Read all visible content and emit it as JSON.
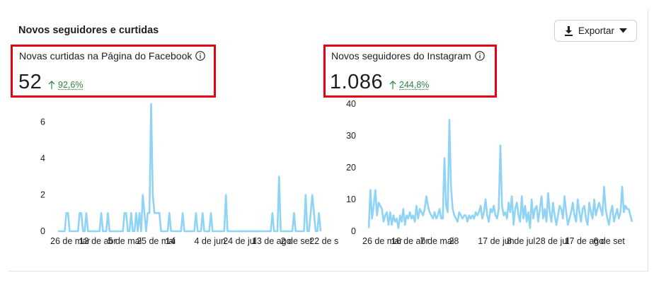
{
  "section": {
    "title": "Novos seguidores e curtidas",
    "export_label": "Exportar"
  },
  "icons": {
    "export": "download-icon",
    "dropdown": "caret-down-icon",
    "info": "info-icon",
    "trend": "arrow-up-icon"
  },
  "colors": {
    "series": "#8fd4f5",
    "positive": "#2e8540",
    "highlight": "#e60012"
  },
  "facebook": {
    "title": "Novas curtidas na Página do Facebook",
    "value": "52",
    "change": "92,6%"
  },
  "instagram": {
    "title": "Novos seguidores do Instagram",
    "value": "1.086",
    "change": "244,8%"
  },
  "chart_data": [
    {
      "type": "line",
      "title": "",
      "xlabel": "",
      "ylabel": "",
      "ylim": [
        0,
        7
      ],
      "yticks": [
        0,
        2,
        4,
        6
      ],
      "grid": false,
      "xtick_labels": [
        "26 de mar",
        "13 de abr",
        "5 de mai",
        "25 de mai",
        "14",
        "4 de jun",
        "24 de jul",
        "13 de ago",
        "2 de set",
        "22 de s"
      ],
      "series": [
        {
          "values": [
            0,
            0,
            0,
            0,
            0,
            1,
            1,
            0,
            0,
            0,
            0,
            0,
            0,
            1,
            1,
            0,
            0,
            1,
            0,
            0,
            0,
            0,
            0,
            0,
            0,
            0,
            1,
            0,
            0,
            0,
            1,
            0,
            0,
            0,
            0,
            0,
            0,
            0,
            0,
            0,
            1,
            1,
            0,
            0,
            1,
            0,
            0,
            1,
            0,
            1,
            0,
            2,
            1,
            0,
            1,
            1,
            7,
            2,
            1,
            1,
            1,
            1,
            0,
            0,
            0,
            0,
            0,
            1,
            0,
            0,
            0,
            0,
            0,
            0,
            0,
            1,
            0,
            0,
            0,
            0,
            0,
            0,
            0,
            1,
            0,
            0,
            0,
            1,
            0,
            0,
            0,
            0,
            1,
            0,
            0,
            0,
            0,
            0,
            0,
            0,
            0,
            2,
            0,
            0,
            0,
            0,
            0,
            0,
            0,
            0,
            0,
            0,
            0,
            0,
            0,
            0,
            0,
            0,
            0,
            0,
            0,
            0,
            0,
            0,
            0,
            0,
            0,
            0,
            0,
            1,
            0,
            0,
            0,
            3,
            0,
            0,
            0,
            0,
            0,
            0,
            0,
            0,
            1,
            0,
            0,
            0,
            0,
            0,
            0,
            2,
            0,
            0,
            1,
            2,
            1,
            0,
            0,
            1,
            0
          ]
        }
      ]
    },
    {
      "type": "line",
      "title": "",
      "xlabel": "",
      "ylabel": "",
      "ylim": [
        0,
        40
      ],
      "yticks": [
        0,
        10,
        20,
        30,
        40
      ],
      "grid": false,
      "xtick_labels": [
        "26 de mar",
        "16 de abr",
        "7 de mai",
        "28",
        "17 de jun",
        "8 de jul",
        "28 de jul",
        "17 de ago",
        "6 de set"
      ],
      "series": [
        {
          "values": [
            1,
            13,
            4,
            8,
            13,
            5,
            9,
            8,
            7,
            3,
            5,
            6,
            2,
            6,
            2,
            5,
            3,
            4,
            1,
            5,
            3,
            7,
            2,
            5,
            4,
            6,
            4,
            5,
            3,
            8,
            4,
            7,
            6,
            5,
            7,
            11,
            8,
            6,
            5,
            4,
            6,
            4,
            5,
            7,
            4,
            4,
            23,
            8,
            6,
            35,
            14,
            7,
            5,
            4,
            3,
            6,
            5,
            4,
            5,
            5,
            3,
            5,
            4,
            5,
            4,
            6,
            5,
            6,
            8,
            4,
            6,
            10,
            5,
            3,
            7,
            6,
            8,
            5,
            4,
            7,
            27,
            8,
            5,
            6,
            4,
            9,
            6,
            11,
            2,
            7,
            9,
            5,
            3,
            11,
            4,
            8,
            3,
            6,
            1,
            10,
            4,
            7,
            8,
            3,
            7,
            11,
            4,
            7,
            3,
            12,
            6,
            3,
            9,
            5,
            2,
            5,
            8,
            7,
            4,
            11,
            6,
            2,
            4,
            6,
            9,
            5,
            3,
            10,
            6,
            3,
            7,
            8,
            4,
            2,
            9,
            6,
            4,
            10,
            5,
            7,
            9,
            7,
            5,
            14,
            7,
            4,
            2,
            6,
            8,
            3,
            5,
            7,
            4,
            6,
            14,
            6,
            8,
            7,
            7,
            5,
            3
          ]
        }
      ]
    }
  ]
}
